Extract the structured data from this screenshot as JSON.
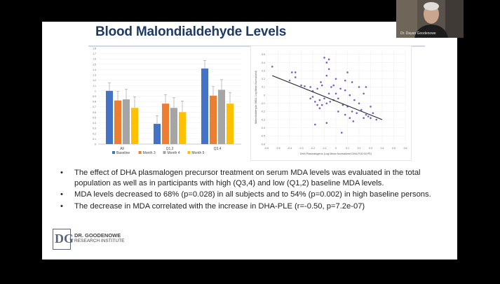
{
  "slide": {
    "title": "Blood Malondialdehyde Levels",
    "bullets": [
      "The effect of DHA plasmalogen precursor treatment on serum MDA levels was evaluated in the total population as well as in participants with high (Q3,4) and low (Q1,2) baseline MDA levels.",
      "MDA levels decreased to 68% (p=0.028) in all subjects and to 54% (p=0.002) in high baseline persons.",
      "The decrease in MDA correlated with the increase in DHA-PLE (r=-0.50, p=7.2e-07)"
    ],
    "bullet_char": "•",
    "logo": {
      "line1": "DR. GOODENOWE",
      "line2": "RESEARCH INSTITUTE"
    }
  },
  "webcam": {
    "label": "Dr. Dayan Goodenowe"
  },
  "chart_data": [
    {
      "type": "bar",
      "categories": [
        "All",
        "Q1,2",
        "Q3,4"
      ],
      "series": [
        {
          "name": "Baseline",
          "values": [
            1.0,
            0.38,
            1.42
          ],
          "color": "#4472c4"
        },
        {
          "name": "Month 3",
          "values": [
            0.82,
            0.76,
            0.91
          ],
          "color": "#ed7d31"
        },
        {
          "name": "Month 4",
          "values": [
            0.84,
            0.68,
            1.02
          ],
          "color": "#a5a5a5"
        },
        {
          "name": "Month 5",
          "values": [
            0.68,
            0.6,
            0.76
          ],
          "color": "#ffc000"
        }
      ],
      "ylim": [
        0,
        1.8
      ],
      "yticks": [
        "0",
        "0.1",
        "0.2",
        "0.3",
        "0.4",
        "0.5",
        "0.6",
        "0.7",
        "0.8",
        "0.9",
        "1",
        "1.1",
        "1.2",
        "1.3",
        "1.4",
        "1.5",
        "1.6",
        "1.7",
        "1.8"
      ],
      "legend": "bottom"
    },
    {
      "type": "scatter",
      "xlabel": "DHA Plasmalogens (Log Mean Normalized DHA-PLE/18 PE)",
      "ylabel": "Malondialdehyde (MDA, Log Mean Normalized)",
      "xticks": [
        "-0.6",
        "-0.5",
        "-0.4",
        "-0.3",
        "-0.2",
        "-0.1",
        "0",
        "0.1",
        "0.2",
        "0.3",
        "0.4",
        "0.5",
        "0.6"
      ],
      "yticks": [
        "0.5",
        "0.4",
        "0.3",
        "0.2",
        "0.1",
        "0",
        "-0.1",
        "-0.2",
        "-0.3",
        "-0.4",
        "-0.5",
        "-0.6"
      ],
      "xlim": [
        -0.6,
        0.6
      ],
      "ylim": [
        -0.6,
        0.55
      ],
      "point_color": "#7a5fb5",
      "trendline": [
        [
          -0.55,
          0.24
        ],
        [
          0.4,
          -0.3
        ]
      ],
      "points": [
        [
          -0.55,
          0.35
        ],
        [
          -0.38,
          0.28
        ],
        [
          -0.35,
          0.28
        ],
        [
          -0.35,
          0.22
        ],
        [
          -0.4,
          0.18
        ],
        [
          -0.3,
          0.12
        ],
        [
          -0.27,
          0.11
        ],
        [
          -0.22,
          0.1
        ],
        [
          -0.2,
          0.05
        ],
        [
          -0.16,
          0.08
        ],
        [
          -0.13,
          0.16
        ],
        [
          -0.12,
          0.12
        ],
        [
          -0.22,
          -0.04
        ],
        [
          -0.2,
          -0.02
        ],
        [
          -0.18,
          -0.08
        ],
        [
          -0.16,
          -0.12
        ],
        [
          -0.14,
          -0.06
        ],
        [
          -0.12,
          -0.12
        ],
        [
          -0.1,
          -0.04
        ],
        [
          -0.08,
          -0.1
        ],
        [
          -0.06,
          0.02
        ],
        [
          -0.05,
          -0.08
        ],
        [
          -0.04,
          0.1
        ],
        [
          -0.02,
          -0.06
        ],
        [
          0,
          0.02
        ],
        [
          0.02,
          -0.04
        ],
        [
          0.04,
          0.08
        ],
        [
          0.06,
          -0.12
        ],
        [
          0.08,
          0.06
        ],
        [
          0.1,
          -0.14
        ],
        [
          0.12,
          0.0
        ],
        [
          0.14,
          -0.2
        ],
        [
          0.16,
          -0.06
        ],
        [
          0.18,
          -0.22
        ],
        [
          0.2,
          -0.1
        ],
        [
          0.22,
          -0.18
        ],
        [
          0.24,
          0.02
        ],
        [
          0.26,
          -0.24
        ],
        [
          0.28,
          -0.26
        ],
        [
          0.3,
          -0.14
        ],
        [
          0.32,
          -0.22
        ],
        [
          0.35,
          -0.3
        ],
        [
          0.26,
          0.1
        ],
        [
          0.2,
          0.1
        ],
        [
          -0.08,
          0.24
        ],
        [
          -0.06,
          0.32
        ],
        [
          -0.1,
          0.46
        ],
        [
          -0.08,
          0.4
        ],
        [
          -0.06,
          0.44
        ],
        [
          -0.14,
          -0.16
        ],
        [
          -0.18,
          -0.36
        ],
        [
          -0.08,
          -0.34
        ],
        [
          0.02,
          -0.2
        ],
        [
          0.08,
          -0.24
        ],
        [
          0.12,
          -0.28
        ],
        [
          0.15,
          -0.32
        ],
        [
          0.24,
          -0.28
        ],
        [
          0.3,
          -0.28
        ],
        [
          0.05,
          -0.46
        ],
        [
          0.0,
          0.2
        ],
        [
          0.08,
          0.18
        ],
        [
          0.14,
          0.16
        ],
        [
          0.1,
          0.28
        ],
        [
          -0.02,
          0.12
        ]
      ]
    }
  ]
}
